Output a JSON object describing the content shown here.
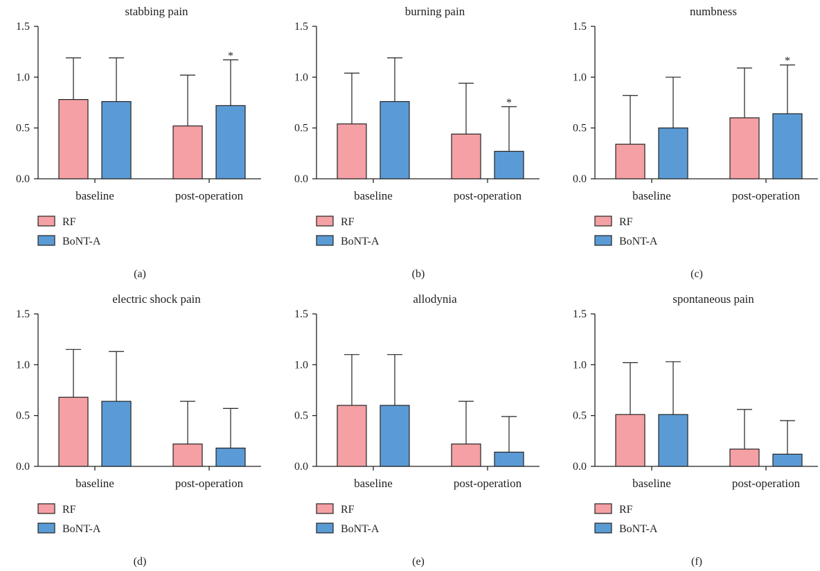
{
  "colors": {
    "RF": "#f4a0a4",
    "BoNT-A": "#5b9bd5",
    "axis": "#222222"
  },
  "chart_data": [
    {
      "type": "bar",
      "panel": "(a)",
      "title": "stabbing pain",
      "categories": [
        "baseline",
        "post-operation"
      ],
      "ylim": [
        0,
        1.5
      ],
      "yticks": [
        "0.0",
        "0.5",
        "1.0",
        "1.5"
      ],
      "legend": "bottom-left",
      "series": [
        {
          "name": "RF",
          "values": [
            0.78,
            0.52
          ],
          "error_upper": [
            1.19,
            1.02
          ]
        },
        {
          "name": "BoNT-A",
          "values": [
            0.76,
            0.72
          ],
          "error_upper": [
            1.19,
            1.17
          ]
        }
      ],
      "annotations": [
        {
          "series": "BoNT-A",
          "category": "post-operation",
          "text": "*"
        }
      ]
    },
    {
      "type": "bar",
      "panel": "(b)",
      "title": "burning pain",
      "categories": [
        "baseline",
        "post-operation"
      ],
      "ylim": [
        0,
        1.5
      ],
      "yticks": [
        "0.0",
        "0.5",
        "1.0",
        "1.5"
      ],
      "legend": "bottom-left",
      "series": [
        {
          "name": "RF",
          "values": [
            0.54,
            0.44
          ],
          "error_upper": [
            1.04,
            0.94
          ]
        },
        {
          "name": "BoNT-A",
          "values": [
            0.76,
            0.27
          ],
          "error_upper": [
            1.19,
            0.71
          ]
        }
      ],
      "annotations": [
        {
          "series": "BoNT-A",
          "category": "post-operation",
          "text": "*"
        }
      ]
    },
    {
      "type": "bar",
      "panel": "(c)",
      "title": "numbness",
      "categories": [
        "baseline",
        "post-operation"
      ],
      "ylim": [
        0,
        1.5
      ],
      "yticks": [
        "0.0",
        "0.5",
        "1.0",
        "1.5"
      ],
      "legend": "bottom-left",
      "series": [
        {
          "name": "RF",
          "values": [
            0.34,
            0.6
          ],
          "error_upper": [
            0.82,
            1.09
          ]
        },
        {
          "name": "BoNT-A",
          "values": [
            0.5,
            0.64
          ],
          "error_upper": [
            1.0,
            1.12
          ]
        }
      ],
      "annotations": [
        {
          "series": "BoNT-A",
          "category": "post-operation",
          "text": "*"
        }
      ]
    },
    {
      "type": "bar",
      "panel": "(d)",
      "title": "electric shock pain",
      "categories": [
        "baseline",
        "post-operation"
      ],
      "ylim": [
        0,
        1.5
      ],
      "yticks": [
        "0.0",
        "0.5",
        "1.0",
        "1.5"
      ],
      "legend": "bottom-left",
      "series": [
        {
          "name": "RF",
          "values": [
            0.68,
            0.22
          ],
          "error_upper": [
            1.15,
            0.64
          ]
        },
        {
          "name": "BoNT-A",
          "values": [
            0.64,
            0.18
          ],
          "error_upper": [
            1.13,
            0.57
          ]
        }
      ],
      "annotations": []
    },
    {
      "type": "bar",
      "panel": "(e)",
      "title": "allodynia",
      "categories": [
        "baseline",
        "post-operation"
      ],
      "ylim": [
        0,
        1.5
      ],
      "yticks": [
        "0.0",
        "0.5",
        "1.0",
        "1.5"
      ],
      "legend": "bottom-left",
      "series": [
        {
          "name": "RF",
          "values": [
            0.6,
            0.22
          ],
          "error_upper": [
            1.1,
            0.64
          ]
        },
        {
          "name": "BoNT-A",
          "values": [
            0.6,
            0.14
          ],
          "error_upper": [
            1.1,
            0.49
          ]
        }
      ],
      "annotations": []
    },
    {
      "type": "bar",
      "panel": "(f)",
      "title": "spontaneous pain",
      "categories": [
        "baseline",
        "post-operation"
      ],
      "ylim": [
        0,
        1.5
      ],
      "yticks": [
        "0.0",
        "0.5",
        "1.0",
        "1.5"
      ],
      "legend": "bottom-left",
      "series": [
        {
          "name": "RF",
          "values": [
            0.51,
            0.17
          ],
          "error_upper": [
            1.02,
            0.56
          ]
        },
        {
          "name": "BoNT-A",
          "values": [
            0.51,
            0.12
          ],
          "error_upper": [
            1.03,
            0.45
          ]
        }
      ],
      "annotations": []
    }
  ]
}
